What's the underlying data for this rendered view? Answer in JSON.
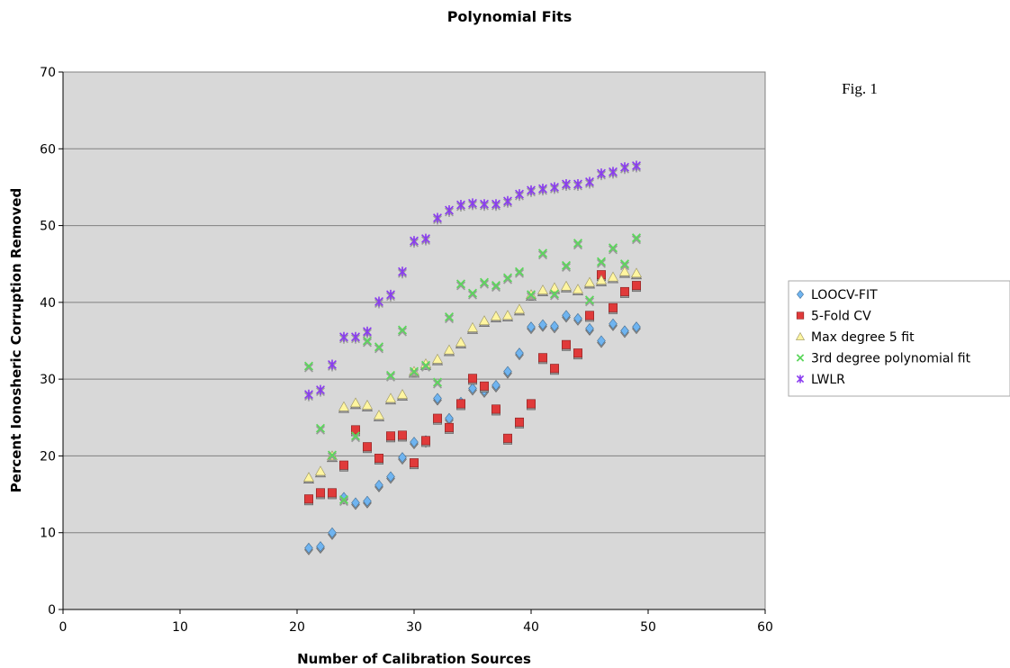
{
  "annotation": "Fig. 1",
  "chart_data": {
    "type": "scatter",
    "title": "Polynomial Fits",
    "xlabel": "Number of Calibration Sources",
    "ylabel": "Percent Ionosheric Corruption Removed",
    "xlim": [
      0,
      60
    ],
    "ylim": [
      0,
      70
    ],
    "xticks": [
      "0",
      "10",
      "20",
      "30",
      "40",
      "50",
      "60"
    ],
    "yticks": [
      "0",
      "10",
      "20",
      "30",
      "40",
      "50",
      "60",
      "70"
    ],
    "grid": "horizontal",
    "plot_background": "#d8d8d8",
    "legend_position": "right",
    "x": [
      21,
      22,
      23,
      24,
      25,
      26,
      27,
      28,
      29,
      30,
      31,
      32,
      33,
      34,
      35,
      36,
      37,
      38,
      39,
      40,
      41,
      42,
      43,
      44,
      45,
      46,
      47,
      48,
      49
    ],
    "series": [
      {
        "name": "LOOCV-FIT",
        "marker": "diamond",
        "color": "#6fb4f0",
        "values": [
          8,
          8.2,
          10,
          14.6,
          13.9,
          14.1,
          16.2,
          17.3,
          19.8,
          21.8,
          22,
          27.5,
          24.9,
          27,
          28.8,
          28.5,
          29.2,
          31,
          33.4,
          36.8,
          37.1,
          36.9,
          38.3,
          37.9,
          36.6,
          35,
          37.2,
          36.3,
          36.8
        ]
      },
      {
        "name": "5-Fold CV",
        "marker": "square",
        "color": "#e03a3a",
        "values": [
          14.4,
          15.2,
          15.2,
          18.8,
          23.4,
          21.2,
          19.7,
          22.6,
          22.7,
          19.1,
          22,
          24.9,
          23.7,
          26.8,
          30.1,
          29.1,
          26.1,
          22.3,
          24.4,
          26.8,
          32.8,
          31.4,
          34.5,
          33.4,
          38.3,
          43.6,
          39.3,
          41.4,
          42.2
        ]
      },
      {
        "name": "Max degree 5 fit",
        "marker": "triangle",
        "color": "#fff5a0",
        "values": [
          17.2,
          18,
          20,
          26.4,
          26.9,
          26.6,
          25.3,
          27.5,
          28,
          31,
          32,
          32.6,
          33.8,
          34.8,
          36.7,
          37.6,
          38.2,
          38.3,
          39.1,
          41,
          41.6,
          41.9,
          42.1,
          41.7,
          42.6,
          42.9,
          43.3,
          44,
          43.8
        ]
      },
      {
        "name": "3rd degree polynomial fit",
        "marker": "x",
        "color": "#5cd65c",
        "values": [
          31.7,
          23.6,
          20.1,
          14.3,
          22.6,
          35,
          34.2,
          30.5,
          36.4,
          31,
          31.8,
          29.6,
          38.1,
          42.4,
          41.2,
          42.6,
          42.2,
          43.2,
          44,
          41,
          46.4,
          41.1,
          44.8,
          47.7,
          40.3,
          45.3,
          47.1,
          45,
          48.4
        ]
      },
      {
        "name": "LWLR",
        "marker": "star",
        "color": "#8a3cf0",
        "values": [
          28,
          28.6,
          31.9,
          35.5,
          35.5,
          36.2,
          40.1,
          41,
          44,
          48,
          48.3,
          51,
          52,
          52.7,
          52.9,
          52.8,
          52.8,
          53.2,
          54.1,
          54.6,
          54.8,
          55,
          55.4,
          55.4,
          55.7,
          56.8,
          57,
          57.6,
          57.8
        ]
      }
    ]
  }
}
